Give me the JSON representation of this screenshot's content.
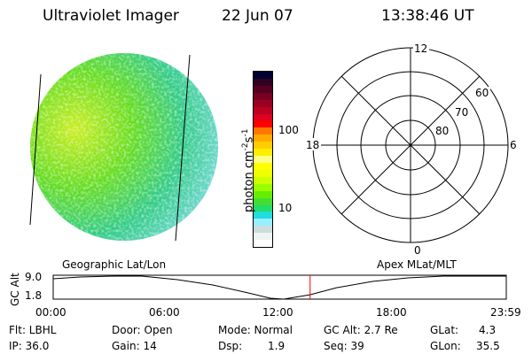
{
  "header": {
    "instrument": "Ultraviolet Imager",
    "date": "22 Jun 07",
    "time": "13:38:46 UT"
  },
  "colorbar": {
    "label": "photon cm",
    "exp1": "-2",
    "s": "s",
    "exp2": "-1",
    "ticks": [
      "100",
      "10"
    ],
    "colors": [
      "#000033",
      "#330022",
      "#550022",
      "#770022",
      "#990022",
      "#bb0022",
      "#dd0022",
      "#ff0000",
      "#ff7700",
      "#ffaa00",
      "#ffcc00",
      "#ffee00",
      "#ffff88",
      "#ffff00",
      "#eeff00",
      "#ccff00",
      "#99ff00",
      "#66ee00",
      "#44dd33",
      "#22dd66",
      "#22dddd",
      "#99eeff",
      "#ccdddd",
      "#eef5f0",
      "#ffffff"
    ]
  },
  "polar": {
    "mlt_labels": {
      "top": "12",
      "left": "18",
      "right": "6",
      "bottom": "0"
    },
    "lat_labels": [
      "60",
      "70",
      "80"
    ]
  },
  "timeline": {
    "left_label": "Geographic Lat/Lon",
    "right_label": "Apex MLat/MLT",
    "ylabel": "GC Alt",
    "y_ticks": [
      "9.0",
      "1.8"
    ],
    "x_ticks": [
      "00:00",
      "06:00",
      "12:00",
      "18:00",
      "23:59"
    ],
    "current_time_fraction": 0.567
  },
  "status": {
    "flt": "Flt: LBHL",
    "ip": "IP: 36.0",
    "door": "Door: Open",
    "gain": "Gain: 14",
    "mode": "Mode: Normal",
    "dsp_label": "Dsp:",
    "dsp": "1.9",
    "gc_alt": "GC Alt: 2.7 Re",
    "seq": "Seq: 39",
    "glat_label": "GLat:",
    "glat": "4.3",
    "glon_label": "GLon:",
    "glon": "35.5"
  },
  "colors": {
    "marker": "#ff0000"
  }
}
